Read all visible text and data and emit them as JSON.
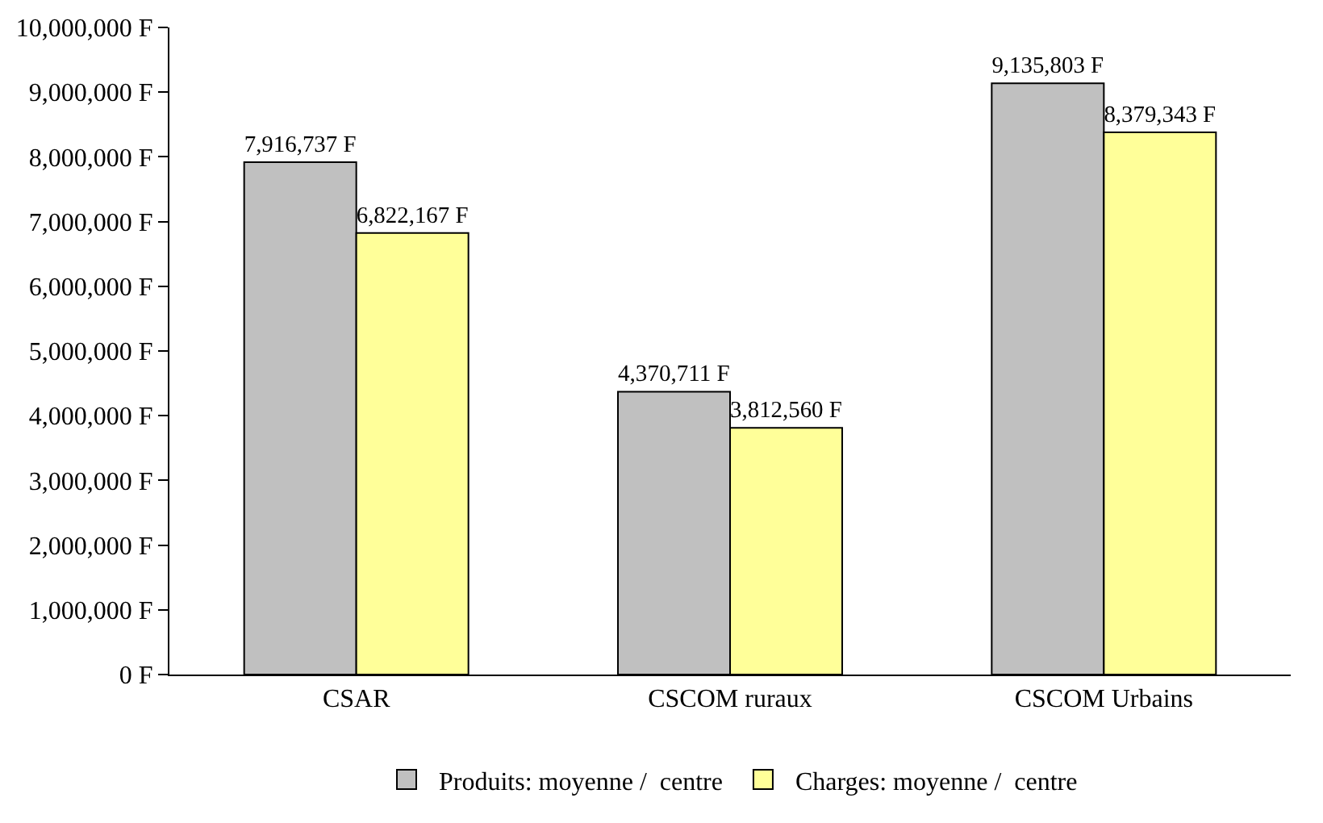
{
  "chart_data": {
    "type": "bar",
    "categories": [
      "CSAR",
      "CSCOM ruraux",
      "CSCOM Urbains"
    ],
    "series": [
      {
        "name": "Produits: moyenne /  centre",
        "color": "#c0c0c0",
        "values": [
          7916737,
          4370711,
          9135803
        ],
        "value_labels": [
          "7,916,737 F",
          "4,370,711 F",
          "9,135,803 F"
        ]
      },
      {
        "name": "Charges: moyenne /  centre",
        "color": "#ffff99",
        "values": [
          6822167,
          3812560,
          8379343
        ],
        "value_labels": [
          "6,822,167 F",
          "3,812,560 F",
          "8,379,343 F"
        ]
      }
    ],
    "ylim": [
      0,
      10000000
    ],
    "yticks": [
      {
        "value": 0,
        "label": "0 F"
      },
      {
        "value": 1000000,
        "label": "1,000,000 F"
      },
      {
        "value": 2000000,
        "label": "2,000,000 F"
      },
      {
        "value": 3000000,
        "label": "3,000,000 F"
      },
      {
        "value": 4000000,
        "label": "4,000,000 F"
      },
      {
        "value": 5000000,
        "label": "5,000,000 F"
      },
      {
        "value": 6000000,
        "label": "6,000,000 F"
      },
      {
        "value": 7000000,
        "label": "7,000,000 F"
      },
      {
        "value": 8000000,
        "label": "8,000,000 F"
      },
      {
        "value": 9000000,
        "label": "9,000,000 F"
      },
      {
        "value": 10000000,
        "label": "10,000,000 F"
      }
    ],
    "grid": false,
    "legend": "bottom"
  }
}
